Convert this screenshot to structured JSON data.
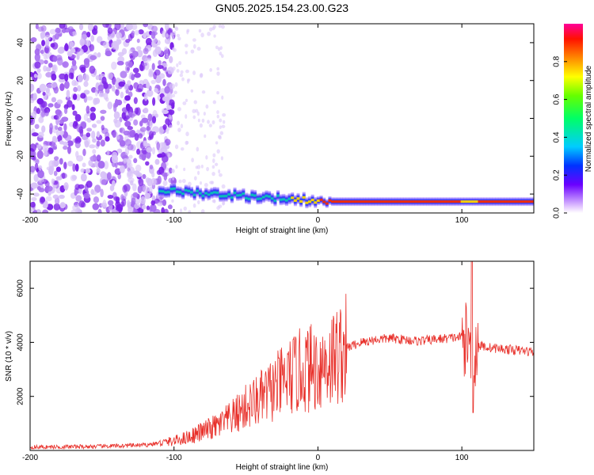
{
  "title": "GN05.2025.154.23.00.G23",
  "chart_data": [
    {
      "type": "heatmap",
      "xlabel": "Height of straight line (km)",
      "ylabel": "Frequency (Hz)",
      "xlim": [
        -200,
        150
      ],
      "ylim": [
        -50,
        50
      ],
      "x_ticks": [
        -200,
        -100,
        0,
        100
      ],
      "y_ticks": [
        -40,
        -20,
        0,
        20,
        40
      ],
      "colorbar": {
        "label": "Normalized spectral amplitude",
        "range": [
          0,
          1
        ],
        "ticks": [
          0.0,
          0.2,
          0.4,
          0.6,
          0.8
        ],
        "tick_labels": [
          "0.0",
          "0.2",
          "0.4",
          "0.6",
          "0.8"
        ]
      },
      "features": {
        "noise_region_x": [
          -200,
          -105
        ],
        "ridge_start_x": -110,
        "ridge_frequency_hz": [
          -38,
          -44
        ]
      }
    },
    {
      "type": "line",
      "xlabel": "Height of straight line (km)",
      "ylabel": "SNR (10 * v/v)",
      "xlim": [
        -200,
        150
      ],
      "ylim": [
        0,
        7000
      ],
      "x_ticks": [
        -200,
        -100,
        0,
        100
      ],
      "y_ticks": [
        2000,
        4000,
        6000
      ],
      "color": "#e8302a",
      "series": [
        {
          "x": [
            -200,
            -150,
            -120,
            -100,
            -90,
            -80,
            -70,
            -60,
            -50,
            -40,
            -30,
            -20,
            -10,
            0,
            10,
            20,
            30,
            40,
            50,
            60,
            70,
            80,
            90,
            100,
            105,
            108,
            110,
            120,
            130,
            140,
            150
          ],
          "y": [
            120,
            150,
            200,
            350,
            500,
            700,
            900,
            1200,
            1600,
            1900,
            2300,
            2700,
            3000,
            3100,
            3400,
            3800,
            4000,
            4100,
            4150,
            4100,
            4050,
            4100,
            4150,
            4200,
            4000,
            2500,
            3900,
            3800,
            3750,
            3700,
            3650
          ]
        }
      ]
    }
  ]
}
